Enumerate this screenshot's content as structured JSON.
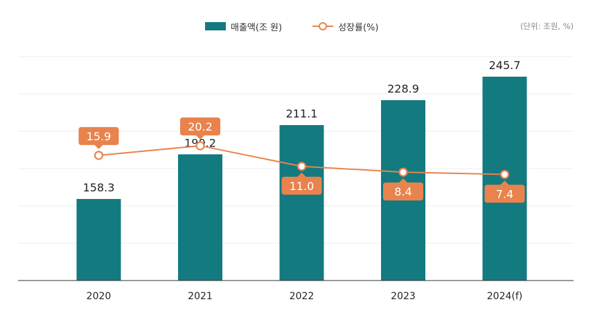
{
  "unit_note": "(단위: 조원, %)",
  "colors": {
    "bar": "#137a80",
    "line": "#e8834e",
    "grid": "#eeeeee",
    "axis": "#333333"
  },
  "chart_data": {
    "type": "bar",
    "categories": [
      "2020",
      "2021",
      "2022",
      "2023",
      "2024(f)"
    ],
    "series": [
      {
        "name": "매출액(조 원)",
        "type": "bar",
        "values": [
          158.3,
          190.2,
          211.1,
          228.9,
          245.7
        ]
      },
      {
        "name": "성장률(%)",
        "type": "line",
        "values": [
          15.9,
          20.2,
          11.0,
          8.4,
          7.4
        ]
      }
    ],
    "value_labels": {
      "bar": [
        "158.3",
        "190.2",
        "211.1",
        "228.9",
        "245.7"
      ],
      "line": [
        "15.9",
        "20.2",
        "11.0",
        "8.4",
        "7.4"
      ]
    },
    "line_label_position": [
      "above",
      "above",
      "below",
      "below",
      "below"
    ],
    "ylim": [
      100,
      260
    ],
    "y2lim": [
      -40,
      60
    ],
    "grid": true,
    "legend_position": "top-center"
  }
}
